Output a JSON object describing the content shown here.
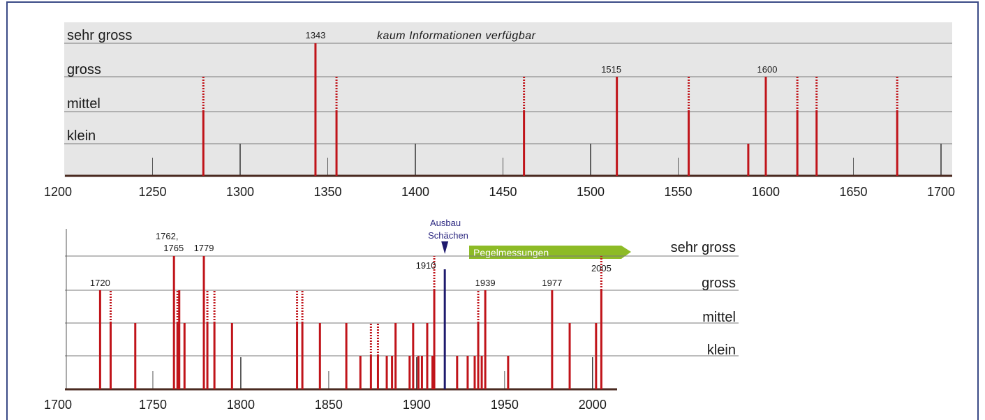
{
  "chart_data": [
    {
      "type": "bar",
      "x_range": [
        1200,
        1700
      ],
      "x_ticks": [
        "1200",
        "1250",
        "1300",
        "1350",
        "1400",
        "1450",
        "1500",
        "1550",
        "1600",
        "1650",
        "1700"
      ],
      "levels": [
        "sehr gross",
        "gross",
        "mittel",
        "klein"
      ],
      "note": "kaum Informationen verfügbar",
      "events": [
        {
          "year": 1279,
          "level": "mittel",
          "uncertain_to": "gross"
        },
        {
          "year": 1343,
          "level": "sehr gross",
          "label": "1343"
        },
        {
          "year": 1355,
          "level": "mittel",
          "uncertain_to": "gross"
        },
        {
          "year": 1462,
          "level": "mittel",
          "uncertain_to": "gross"
        },
        {
          "year": 1515,
          "level": "gross",
          "label": "1515"
        },
        {
          "year": 1556,
          "level": "mittel",
          "uncertain_to": "gross"
        },
        {
          "year": 1590,
          "level": "klein"
        },
        {
          "year": 1600,
          "level": "gross",
          "label": "1600"
        },
        {
          "year": 1618,
          "level": "mittel",
          "uncertain_to": "gross"
        },
        {
          "year": 1629,
          "level": "mittel",
          "uncertain_to": "gross"
        },
        {
          "year": 1675,
          "level": "mittel",
          "uncertain_to": "gross"
        }
      ]
    },
    {
      "type": "bar",
      "x_range": [
        1700,
        2010
      ],
      "x_ticks": [
        "1700",
        "1750",
        "1800",
        "1850",
        "1900",
        "1950",
        "2000"
      ],
      "levels": [
        "sehr gross",
        "gross",
        "mittel",
        "klein"
      ],
      "marker": {
        "year": 1916,
        "label_line1": "Ausbau",
        "label_line2": "Schächen"
      },
      "gauge": {
        "start_year": 1916,
        "end_year": 2010,
        "label": "Pegelmessungen"
      },
      "events": [
        {
          "year": 1720,
          "level": "gross",
          "label": "1720"
        },
        {
          "year": 1726,
          "level": "mittel",
          "uncertain_to": "gross"
        },
        {
          "year": 1740,
          "level": "mittel"
        },
        {
          "year": 1762,
          "level": "sehr gross",
          "label": "1762,"
        },
        {
          "year": 1764,
          "level": "mittel",
          "uncertain_to": "gross"
        },
        {
          "year": 1765,
          "level": "gross",
          "label": "1765"
        },
        {
          "year": 1768,
          "level": "mittel"
        },
        {
          "year": 1779,
          "level": "sehr gross",
          "label": "1779"
        },
        {
          "year": 1781,
          "level": "mittel",
          "uncertain_to": "gross"
        },
        {
          "year": 1785,
          "level": "mittel",
          "uncertain_to": "gross"
        },
        {
          "year": 1795,
          "level": "mittel"
        },
        {
          "year": 1832,
          "level": "mittel",
          "uncertain_to": "gross"
        },
        {
          "year": 1835,
          "level": "mittel",
          "uncertain_to": "gross"
        },
        {
          "year": 1845,
          "level": "mittel"
        },
        {
          "year": 1860,
          "level": "mittel"
        },
        {
          "year": 1868,
          "level": "klein"
        },
        {
          "year": 1874,
          "level": "klein",
          "uncertain_to": "mittel"
        },
        {
          "year": 1878,
          "level": "klein",
          "uncertain_to": "mittel"
        },
        {
          "year": 1883,
          "level": "klein"
        },
        {
          "year": 1886,
          "level": "klein"
        },
        {
          "year": 1888,
          "level": "mittel"
        },
        {
          "year": 1896,
          "level": "klein"
        },
        {
          "year": 1898,
          "level": "mittel"
        },
        {
          "year": 1901,
          "level": "klein"
        },
        {
          "year": 1903,
          "level": "klein"
        },
        {
          "year": 1906,
          "level": "mittel"
        },
        {
          "year": 1909,
          "level": "klein"
        },
        {
          "year": 1910,
          "level": "gross",
          "uncertain_to": "sehr gross",
          "label": "1910"
        },
        {
          "year": 1923,
          "level": "klein"
        },
        {
          "year": 1929,
          "level": "klein"
        },
        {
          "year": 1933,
          "level": "klein"
        },
        {
          "year": 1935,
          "level": "mittel",
          "uncertain_to": "gross"
        },
        {
          "year": 1937,
          "level": "klein"
        },
        {
          "year": 1939,
          "level": "gross",
          "label": "1939"
        },
        {
          "year": 1952,
          "level": "klein"
        },
        {
          "year": 1977,
          "level": "gross",
          "label": "1977"
        },
        {
          "year": 1987,
          "level": "mittel"
        },
        {
          "year": 2002,
          "level": "mittel"
        },
        {
          "year": 2005,
          "level": "gross",
          "uncertain_to": "sehr gross",
          "label": "2005"
        }
      ]
    }
  ],
  "colors": {
    "event_bar": "#c0141a",
    "marker": "#1f1b6e",
    "gauge_arrow": "#8dbb26",
    "axis": "#4a2a20",
    "frame": "#3a4a86",
    "panel_bg": "#e6e6e6"
  }
}
